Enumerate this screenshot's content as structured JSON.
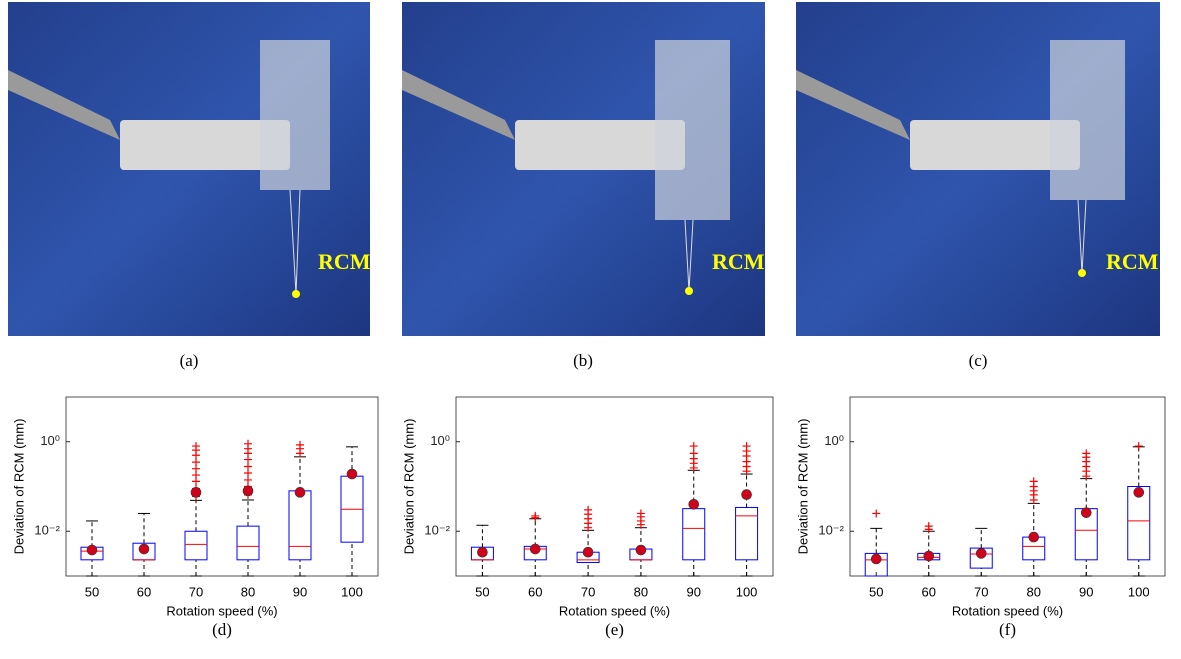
{
  "photos": [
    {
      "label": "RCM",
      "caption": "(a)"
    },
    {
      "label": "RCM",
      "caption": "(b)"
    },
    {
      "label": "RCM",
      "caption": "(c)"
    }
  ],
  "chart_data": [
    {
      "type": "box",
      "caption": "(d)",
      "y_label": "Deviation of RCM (mm)",
      "x_label": "Rotation speed (%)",
      "log_scale": true,
      "categories": [
        "50",
        "60",
        "70",
        "80",
        "90",
        "100"
      ],
      "ylim": [
        0.001,
        10
      ],
      "yticks": [
        {
          "value": 0.01,
          "label": "10⁻²"
        },
        {
          "value": 1,
          "label": "10⁰"
        }
      ],
      "box_color": "#0000ff",
      "median_color": "#ff0000",
      "mean_color": "#d0021b",
      "flier_color": "#ff0000",
      "boxes": [
        {
          "whislo": 0.001,
          "q1": 0.0023,
          "med": 0.0036,
          "q3": 0.0044,
          "whishi": 0.017,
          "mean": 0.0038,
          "fliers": []
        },
        {
          "whislo": 0.001,
          "q1": 0.0023,
          "med": 0.0023,
          "q3": 0.0054,
          "whishi": 0.025,
          "mean": 0.004,
          "fliers": []
        },
        {
          "whislo": 0.001,
          "q1": 0.0023,
          "med": 0.0051,
          "q3": 0.01,
          "whishi": 0.049,
          "mean": 0.074,
          "fliers": [
            0.06,
            0.09,
            0.13,
            0.18,
            0.25,
            0.35,
            0.5,
            0.65,
            0.8
          ]
        },
        {
          "whislo": 0.001,
          "q1": 0.0023,
          "med": 0.0046,
          "q3": 0.013,
          "whishi": 0.05,
          "mean": 0.08,
          "fliers": [
            0.065,
            0.1,
            0.14,
            0.2,
            0.28,
            0.4,
            0.55,
            0.7,
            0.9
          ]
        },
        {
          "whislo": 0.001,
          "q1": 0.0023,
          "med": 0.0046,
          "q3": 0.08,
          "whishi": 0.46,
          "mean": 0.074,
          "fliers": [
            0.55,
            0.7,
            0.85
          ]
        },
        {
          "whislo": 0.001,
          "q1": 0.0057,
          "med": 0.031,
          "q3": 0.17,
          "whishi": 0.77,
          "mean": 0.19,
          "fliers": []
        }
      ]
    },
    {
      "type": "box",
      "caption": "(e)",
      "y_label": "Deviation of RCM (mm)",
      "x_label": "Rotation speed (%)",
      "log_scale": true,
      "categories": [
        "50",
        "60",
        "70",
        "80",
        "90",
        "100"
      ],
      "ylim": [
        0.001,
        10
      ],
      "yticks": [
        {
          "value": 0.01,
          "label": "10⁻²"
        },
        {
          "value": 1,
          "label": "10⁰"
        }
      ],
      "box_color": "#0000ff",
      "median_color": "#ff0000",
      "mean_color": "#d0021b",
      "flier_color": "#ff0000",
      "boxes": [
        {
          "whislo": 0.001,
          "q1": 0.0023,
          "med": 0.0023,
          "q3": 0.0044,
          "whishi": 0.0136,
          "mean": 0.0034,
          "fliers": []
        },
        {
          "whislo": 0.001,
          "q1": 0.0023,
          "med": 0.004,
          "q3": 0.0046,
          "whishi": 0.019,
          "mean": 0.004,
          "fliers": [
            0.02,
            0.022
          ]
        },
        {
          "whislo": 0.001,
          "q1": 0.002,
          "med": 0.0023,
          "q3": 0.0034,
          "whishi": 0.0105,
          "mean": 0.0034,
          "fliers": [
            0.012,
            0.015,
            0.019,
            0.024,
            0.03
          ]
        },
        {
          "whislo": 0.001,
          "q1": 0.0023,
          "med": 0.0023,
          "q3": 0.004,
          "whishi": 0.012,
          "mean": 0.0038,
          "fliers": [
            0.014,
            0.017,
            0.021,
            0.025
          ]
        },
        {
          "whislo": 0.001,
          "q1": 0.0023,
          "med": 0.0116,
          "q3": 0.032,
          "whishi": 0.23,
          "mean": 0.04,
          "fliers": [
            0.26,
            0.33,
            0.42,
            0.55,
            0.8
          ]
        },
        {
          "whislo": 0.001,
          "q1": 0.0023,
          "med": 0.022,
          "q3": 0.034,
          "whishi": 0.19,
          "mean": 0.066,
          "fliers": [
            0.22,
            0.28,
            0.36,
            0.48,
            0.62,
            0.8
          ]
        }
      ]
    },
    {
      "type": "box",
      "caption": "(f)",
      "y_label": "Deviation of RCM (mm)",
      "x_label": "Rotation speed (%)",
      "log_scale": true,
      "categories": [
        "50",
        "60",
        "70",
        "80",
        "90",
        "100"
      ],
      "ylim": [
        0.001,
        10
      ],
      "yticks": [
        {
          "value": 0.01,
          "label": "10⁻²"
        },
        {
          "value": 1,
          "label": "10⁰"
        }
      ],
      "box_color": "#0000ff",
      "median_color": "#ff0000",
      "mean_color": "#d0021b",
      "flier_color": "#ff0000",
      "boxes": [
        {
          "whislo": 0.001,
          "q1": 0.001,
          "med": 0.0023,
          "q3": 0.0032,
          "whishi": 0.0116,
          "mean": 0.0024,
          "fliers": [
            0.025
          ]
        },
        {
          "whislo": 0.001,
          "q1": 0.0023,
          "med": 0.0026,
          "q3": 0.0032,
          "whishi": 0.01,
          "mean": 0.0028,
          "fliers": [
            0.011,
            0.013
          ]
        },
        {
          "whislo": 0.001,
          "q1": 0.0015,
          "med": 0.0031,
          "q3": 0.0042,
          "whishi": 0.0116,
          "mean": 0.0032,
          "fliers": []
        },
        {
          "whislo": 0.001,
          "q1": 0.0023,
          "med": 0.0046,
          "q3": 0.0074,
          "whishi": 0.042,
          "mean": 0.0074,
          "fliers": [
            0.05,
            0.065,
            0.08,
            0.1,
            0.13
          ]
        },
        {
          "whislo": 0.001,
          "q1": 0.0023,
          "med": 0.0105,
          "q3": 0.032,
          "whishi": 0.15,
          "mean": 0.026,
          "fliers": [
            0.17,
            0.22,
            0.28,
            0.36,
            0.45,
            0.55
          ]
        },
        {
          "whislo": 0.001,
          "q1": 0.0023,
          "med": 0.017,
          "q3": 0.1,
          "whishi": 0.77,
          "mean": 0.074,
          "fliers": [
            0.8
          ]
        }
      ]
    }
  ]
}
